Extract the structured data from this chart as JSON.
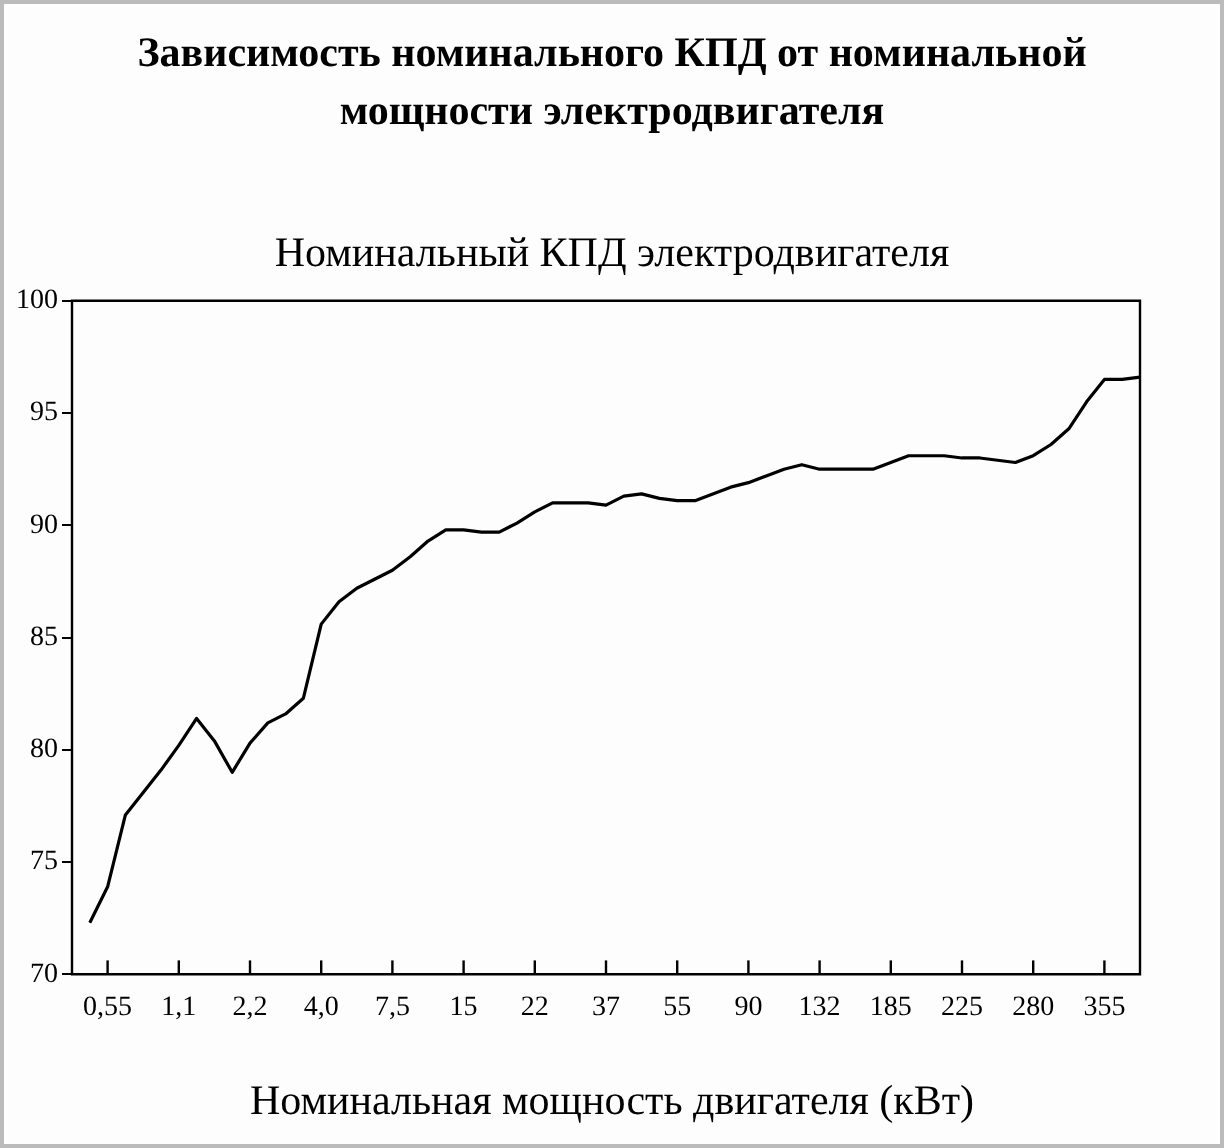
{
  "chart_data": {
    "type": "line",
    "title": "Зависимость номинального КПД от номинальной мощности электродвигателя",
    "subtitle": "Номинальный КПД электродвигателя",
    "xlabel": "Номинальная мощность двигателя (кВт)",
    "categories": [
      null,
      null,
      "0,55",
      null,
      null,
      null,
      "1,1",
      null,
      null,
      null,
      "2,2",
      null,
      null,
      null,
      "4,0",
      null,
      null,
      null,
      "7,5",
      null,
      null,
      null,
      "15",
      null,
      null,
      null,
      "22",
      null,
      null,
      null,
      "37",
      null,
      null,
      null,
      "55",
      null,
      null,
      null,
      "90",
      null,
      null,
      null,
      "132",
      null,
      null,
      null,
      "185",
      null,
      null,
      null,
      "225",
      null,
      null,
      null,
      "280",
      null,
      null,
      null,
      "355",
      null,
      null
    ],
    "series": [
      {
        "color": "#000000",
        "values": [
          null,
          72.3,
          73.9,
          77.1,
          78.1,
          79.1,
          80.2,
          81.4,
          80.4,
          79.0,
          80.3,
          81.2,
          81.6,
          82.3,
          85.6,
          86.6,
          87.2,
          87.6,
          88.0,
          88.6,
          89.3,
          89.8,
          89.8,
          89.7,
          89.7,
          90.1,
          90.6,
          91.0,
          91.0,
          91.0,
          90.9,
          91.3,
          91.4,
          91.2,
          91.1,
          91.1,
          91.4,
          91.7,
          91.9,
          92.2,
          92.5,
          92.7,
          92.5,
          92.5,
          92.5,
          92.5,
          92.8,
          93.1,
          93.1,
          93.1,
          93.0,
          93.0,
          92.9,
          92.8,
          93.1,
          93.6,
          94.3,
          95.5,
          96.5,
          96.5,
          96.6
        ]
      }
    ],
    "ylim": [
      70,
      100
    ],
    "yticks": [
      70,
      75,
      80,
      85,
      90,
      95,
      100
    ],
    "grid": false,
    "legend": false,
    "marker": "none",
    "line_style": "solid"
  }
}
